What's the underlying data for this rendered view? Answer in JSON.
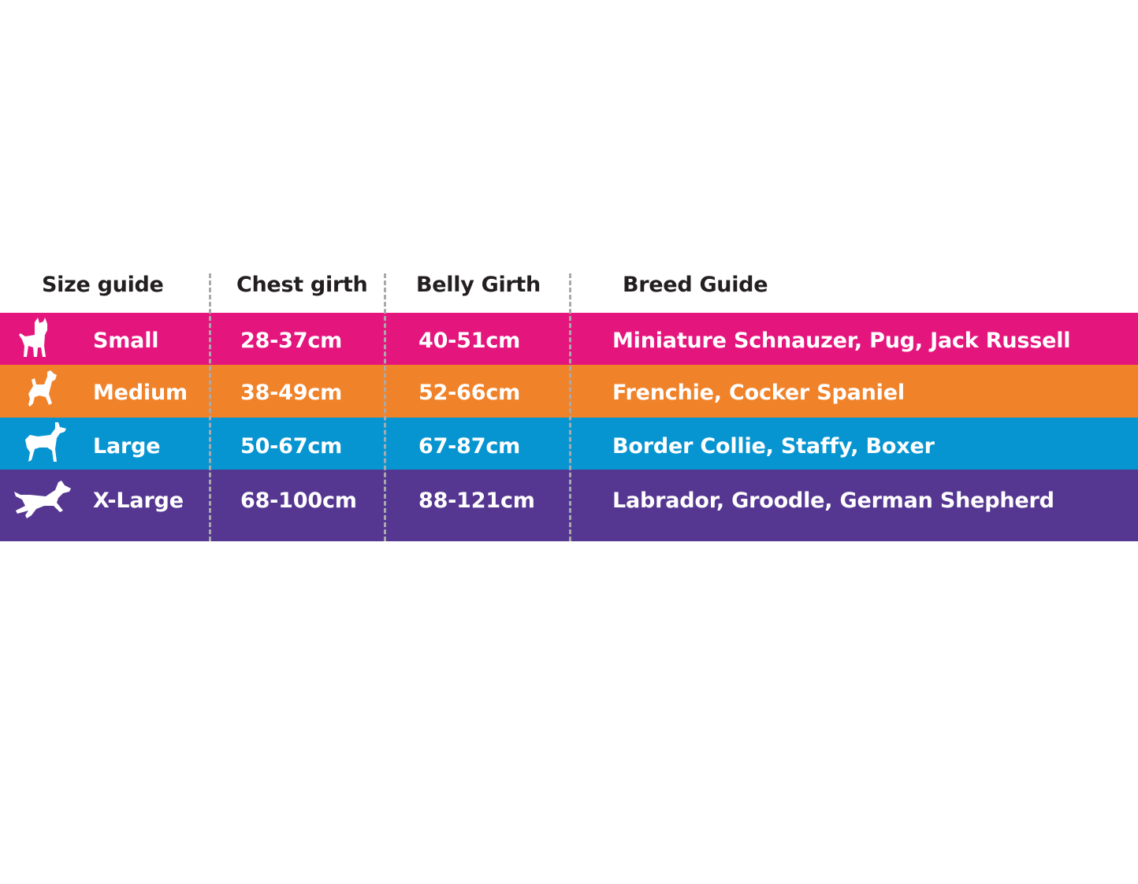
{
  "header": {
    "size_guide": "Size guide",
    "chest_girth": "Chest girth",
    "belly_girth": "Belly Girth",
    "breed_guide": "Breed Guide"
  },
  "rows": [
    {
      "size": "Small",
      "chest": "28-37cm",
      "belly": "40-51cm",
      "breeds": "Miniature Schnauzer, Pug, Jack Russell",
      "color": "#e5157e",
      "icon": "small-dog-icon"
    },
    {
      "size": "Medium",
      "chest": "38-49cm",
      "belly": "52-66cm",
      "breeds": "Frenchie, Cocker Spaniel",
      "color": "#f0822a",
      "icon": "medium-dog-icon"
    },
    {
      "size": "Large",
      "chest": "50-67cm",
      "belly": "67-87cm",
      "breeds": "Border Collie, Staffy, Boxer",
      "color": "#0795d1",
      "icon": "large-dog-icon"
    },
    {
      "size": "X-Large",
      "chest": "68-100cm",
      "belly": "88-121cm",
      "breeds": "Labrador, Groodle, German Shepherd",
      "color": "#553791",
      "icon": "xlarge-dog-icon"
    }
  ],
  "colors": {
    "header_text": "#231f20",
    "divider": "#a7a9ac",
    "row_text": "#ffffff"
  }
}
